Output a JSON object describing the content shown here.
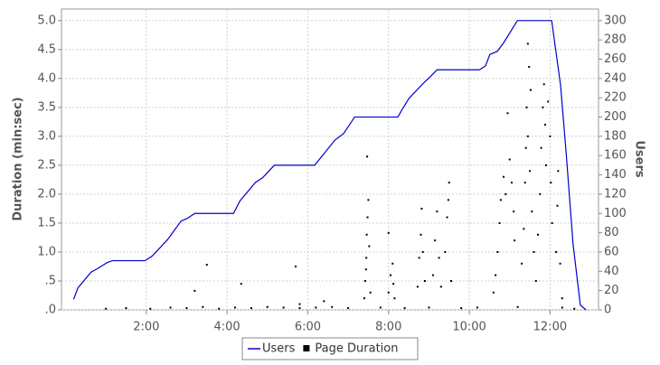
{
  "chart_data": {
    "type": "combo",
    "y_label": "Duration (min:sec)",
    "y2_label": "Users",
    "xlim": [
      -0.1,
      13.2
    ],
    "ylim": [
      0,
      5.2
    ],
    "y2lim": [
      0,
      312
    ],
    "xticks": [
      {
        "value": 2,
        "label": "2:00"
      },
      {
        "value": 4,
        "label": "4:00"
      },
      {
        "value": 6,
        "label": "6:00"
      },
      {
        "value": 8,
        "label": "8:00"
      },
      {
        "value": 10,
        "label": "10:00"
      },
      {
        "value": 12,
        "label": "12:00"
      }
    ],
    "yticks": [
      {
        "value": 0,
        "label": ".0"
      },
      {
        "value": 0.5,
        "label": ".5"
      },
      {
        "value": 1,
        "label": "1.0"
      },
      {
        "value": 1.5,
        "label": "1.5"
      },
      {
        "value": 2,
        "label": "2.0"
      },
      {
        "value": 2.5,
        "label": "2.5"
      },
      {
        "value": 3,
        "label": "3.0"
      },
      {
        "value": 3.5,
        "label": "3.5"
      },
      {
        "value": 4,
        "label": "4.0"
      },
      {
        "value": 4.5,
        "label": "4.5"
      },
      {
        "value": 5,
        "label": "5.0"
      }
    ],
    "y2ticks": [
      0,
      20,
      40,
      60,
      80,
      100,
      120,
      140,
      160,
      180,
      200,
      220,
      240,
      260,
      280,
      300
    ],
    "grid": true,
    "series": [
      {
        "name": "Users",
        "type": "line",
        "axis": "y2",
        "color": "#0000cc",
        "x": [
          0.2,
          0.31,
          0.63,
          0.8,
          1.03,
          1.16,
          1.97,
          2.15,
          2.53,
          2.86,
          3.02,
          3.2,
          4.16,
          4.32,
          4.7,
          4.88,
          5.17,
          6.17,
          6.67,
          6.89,
          7.16,
          8.23,
          8.34,
          8.5,
          8.86,
          9.04,
          9.2,
          10.25,
          10.4,
          10.51,
          10.69,
          10.85,
          11.19,
          12.04,
          12.26,
          12.4,
          12.57,
          12.75,
          12.89
        ],
        "values": [
          11,
          23,
          39,
          43,
          49,
          51,
          51,
          56,
          73,
          92,
          95,
          100,
          100,
          113,
          132,
          137,
          150,
          150,
          176,
          183,
          200,
          200,
          208,
          219,
          235,
          242,
          249,
          249,
          253,
          265,
          268,
          277,
          300,
          300,
          233,
          162,
          68,
          5,
          0
        ]
      },
      {
        "name": "Page Duration",
        "type": "scatter",
        "color": "#000000",
        "x": [
          1.0,
          1.5,
          2.1,
          2.6,
          3.0,
          3.4,
          3.8,
          4.2,
          4.6,
          5.0,
          5.4,
          5.8,
          6.2,
          6.6,
          7.0,
          7.8,
          8.4,
          9.0,
          9.8,
          10.2,
          11.2,
          12.3,
          12.6,
          3.2,
          3.5,
          4.35,
          5.7,
          5.8,
          6.4,
          7.4,
          7.42,
          7.45,
          7.46,
          7.48,
          7.5,
          7.47,
          7.52,
          7.44,
          7.55,
          8.0,
          8.05,
          8.1,
          8.12,
          8.15,
          8.0,
          8.72,
          8.76,
          8.8,
          8.82,
          8.85,
          8.9,
          9.1,
          9.15,
          9.2,
          9.25,
          9.3,
          9.4,
          9.45,
          9.5,
          9.48,
          9.55,
          10.6,
          10.65,
          10.7,
          10.75,
          10.78,
          10.85,
          10.9,
          10.95,
          11.0,
          11.05,
          11.1,
          11.12,
          11.3,
          11.35,
          11.38,
          11.4,
          11.42,
          11.45,
          11.5,
          11.55,
          11.45,
          11.48,
          11.52,
          11.6,
          11.65,
          11.7,
          11.75,
          11.78,
          11.82,
          11.85,
          11.88,
          11.9,
          11.95,
          12.0,
          12.02,
          12.05,
          12.15,
          12.18,
          12.2,
          12.25,
          12.3
        ],
        "values": [
          0.02,
          0.03,
          0.02,
          0.04,
          0.03,
          0.05,
          0.02,
          0.04,
          0.03,
          0.05,
          0.04,
          0.03,
          0.04,
          0.05,
          0.03,
          0.04,
          0.03,
          0.04,
          0.03,
          0.04,
          0.05,
          0.04,
          0.02,
          0.33,
          0.78,
          0.45,
          0.75,
          0.1,
          0.15,
          0.2,
          0.5,
          0.9,
          1.3,
          1.6,
          1.9,
          2.65,
          1.1,
          0.7,
          0.3,
          0.3,
          0.6,
          0.8,
          0.45,
          0.2,
          1.33,
          0.4,
          0.9,
          1.3,
          1.75,
          1.0,
          0.5,
          0.6,
          1.2,
          1.7,
          0.9,
          0.4,
          1.0,
          1.6,
          2.2,
          1.9,
          0.5,
          0.3,
          0.6,
          1.0,
          1.5,
          1.9,
          2.3,
          2.0,
          3.4,
          2.6,
          2.2,
          1.7,
          1.2,
          0.8,
          1.4,
          2.2,
          2.8,
          3.5,
          3.0,
          2.4,
          1.7,
          4.6,
          4.2,
          3.8,
          1.0,
          0.5,
          1.3,
          2.0,
          2.8,
          3.5,
          3.9,
          3.2,
          2.5,
          3.6,
          3.0,
          2.2,
          1.5,
          1.0,
          1.8,
          2.4,
          0.8,
          0.2
        ]
      }
    ]
  }
}
